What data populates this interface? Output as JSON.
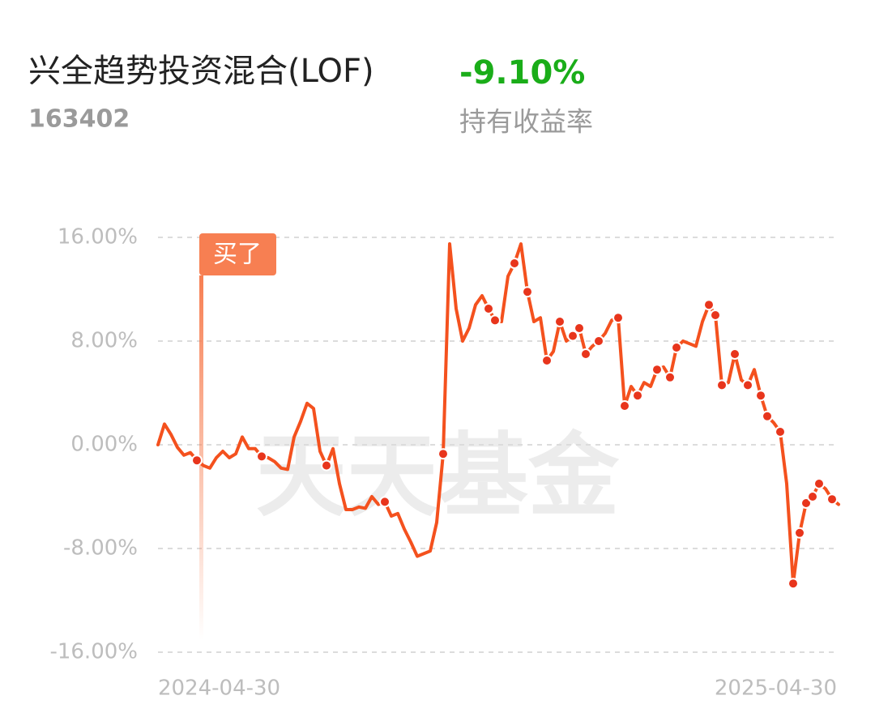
{
  "chart_data": {
    "type": "line",
    "title": "兴全趋势投资混合(LOF)",
    "fund_code": "163402",
    "return": "-9.10%",
    "return_label": "持有收益率",
    "buy_label": "买了",
    "watermark": "天天基金",
    "grid": true,
    "ylim": [
      -16,
      16
    ],
    "yticks": [
      {
        "value": -16,
        "label": "-16.00%"
      },
      {
        "value": -8,
        "label": "-8.00%"
      },
      {
        "value": 0,
        "label": "0.00%"
      },
      {
        "value": 8,
        "label": "8.00%"
      },
      {
        "value": 16,
        "label": "16.00%"
      }
    ],
    "categories": [
      "2024-04-30",
      null,
      null,
      null,
      null,
      null,
      null,
      null,
      null,
      null,
      null,
      null,
      null,
      null,
      null,
      null,
      null,
      null,
      null,
      null,
      null,
      null,
      null,
      null,
      null,
      null,
      null,
      null,
      null,
      null,
      null,
      null,
      null,
      null,
      null,
      null,
      null,
      null,
      null,
      null,
      null,
      null,
      null,
      null,
      null,
      null,
      null,
      null,
      null,
      null,
      null,
      null,
      null,
      null,
      null,
      null,
      null,
      null,
      null,
      null,
      null,
      null,
      null,
      null,
      null,
      null,
      null,
      null,
      null,
      null,
      null,
      null,
      null,
      null,
      null,
      null,
      null,
      null,
      null,
      null,
      null,
      null,
      null,
      null,
      null,
      null,
      null,
      null,
      null,
      null,
      null,
      null,
      null,
      null,
      null,
      null,
      null,
      null,
      null,
      null,
      null,
      null,
      null,
      null,
      null,
      "2025-04-30"
    ],
    "series": [
      {
        "color": "#f4511e",
        "style": "line",
        "values": [
          0.0,
          1.6,
          0.8,
          -0.2,
          -0.8,
          -0.6,
          -1.2,
          -1.6,
          -1.8,
          -1.0,
          -0.5,
          -1.0,
          -0.7,
          0.6,
          -0.3,
          -0.3,
          -0.9,
          -1.0,
          -1.3,
          -1.8,
          -1.9,
          0.6,
          1.8,
          3.2,
          2.8,
          -0.5,
          -1.6,
          -0.3,
          -3.0,
          -5.0,
          -5.0,
          -4.8,
          -4.9,
          -4.0,
          -4.6,
          -4.4,
          -5.5,
          -5.3,
          -6.5,
          -7.5,
          -8.6,
          -8.4,
          -8.2,
          -6.0,
          -0.7,
          15.5,
          10.5,
          8.0,
          9.0,
          10.8,
          11.5,
          10.5,
          9.6,
          9.5,
          13.0,
          14.0,
          15.5,
          11.8,
          9.5,
          9.8,
          6.5,
          7.2,
          9.5,
          8.0,
          8.4,
          9.0,
          7.0,
          7.6,
          8.0,
          8.6,
          9.6,
          9.8,
          3.0,
          4.5,
          3.8,
          4.8,
          4.5,
          5.8,
          6.0,
          5.2,
          7.5,
          8.0,
          7.8,
          7.6,
          9.5,
          10.8,
          10.0,
          4.6,
          4.8,
          7.0,
          5.0,
          4.6,
          5.8,
          3.8,
          2.2,
          1.7,
          1.0,
          -3.0,
          -10.7,
          -6.8,
          -4.5,
          -4.0,
          -3.0,
          -3.4,
          -4.2,
          -4.6
        ]
      },
      {
        "color": "#e8351c",
        "style": "dots",
        "values": [
          null,
          null,
          null,
          null,
          null,
          null,
          -1.2,
          null,
          null,
          null,
          null,
          null,
          null,
          null,
          null,
          null,
          -0.9,
          null,
          null,
          null,
          null,
          null,
          null,
          null,
          null,
          null,
          -1.6,
          null,
          null,
          null,
          null,
          null,
          null,
          null,
          null,
          -4.4,
          null,
          null,
          null,
          null,
          null,
          null,
          null,
          null,
          -0.7,
          null,
          null,
          null,
          null,
          null,
          null,
          10.5,
          9.6,
          null,
          null,
          14.0,
          null,
          11.8,
          null,
          null,
          6.5,
          null,
          9.5,
          null,
          8.4,
          9.0,
          7.0,
          null,
          8.0,
          null,
          null,
          9.8,
          3.0,
          null,
          3.8,
          null,
          null,
          5.8,
          null,
          5.2,
          7.5,
          null,
          null,
          null,
          null,
          10.8,
          10.0,
          4.6,
          null,
          7.0,
          null,
          4.6,
          null,
          3.8,
          2.2,
          null,
          1.0,
          null,
          -10.7,
          -6.8,
          -4.5,
          -4.0,
          -3.0,
          null,
          -4.2,
          null
        ]
      }
    ]
  }
}
